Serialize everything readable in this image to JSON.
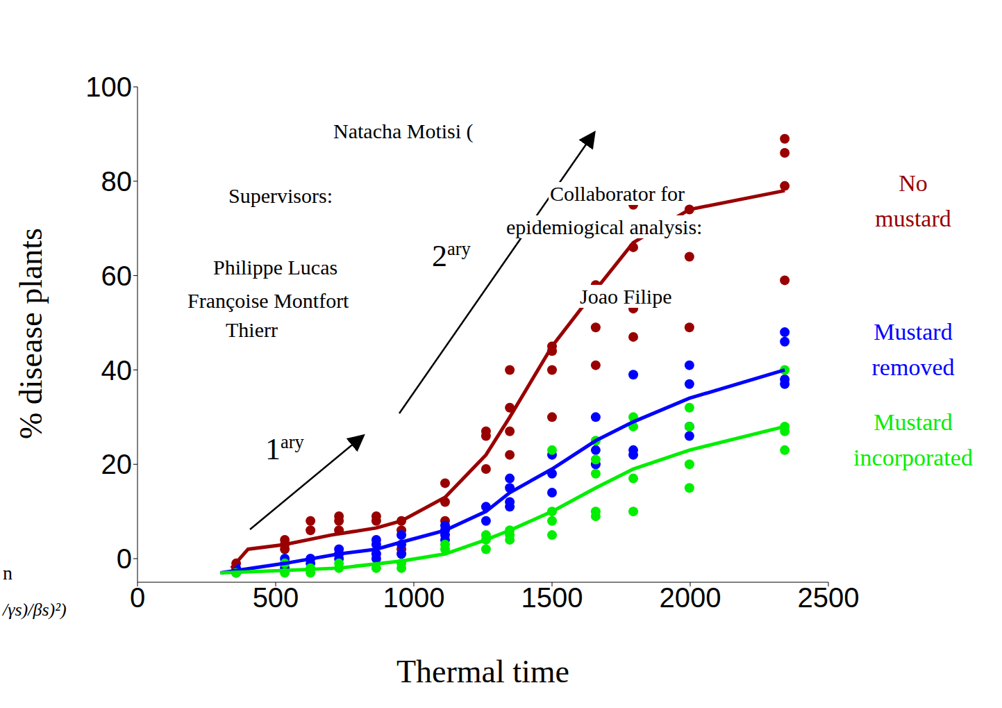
{
  "chart_data": {
    "type": "scatter",
    "x_label": "Thermal time",
    "y_label": "% disease plants",
    "xlim": [
      0,
      2500
    ],
    "xticks": [
      0,
      500,
      1000,
      1500,
      2000,
      2500
    ],
    "ylim": [
      -5,
      100
    ],
    "yticks": [
      0,
      20,
      40,
      60,
      80,
      100
    ],
    "legend": "right",
    "grid": false,
    "annotations": [
      "Natacha Motisi (",
      "Supervisors:",
      "Philippe Lucas",
      "Françoise Montfort",
      "Thierr",
      "Collaborator for",
      "epidemiogical analysis:",
      "Joao Filipe",
      "1ary",
      "2ary",
      "n",
      "/γs)/βs)²)"
    ],
    "series": [
      {
        "name": "No mustard",
        "color": "#990000",
        "marker": "circle",
        "x": [
          357,
          533,
          533,
          533,
          626,
          626,
          729,
          729,
          729,
          864,
          864,
          955,
          955,
          955,
          1113,
          1113,
          1113,
          1261,
          1261,
          1261,
          1347,
          1347,
          1347,
          1347,
          1500,
          1500,
          1500,
          1500,
          1658,
          1658,
          1658,
          1658,
          1794,
          1794,
          1794,
          1794,
          1997,
          1997,
          1997,
          2342,
          2342,
          2342,
          2342
        ],
        "values": [
          -1,
          4,
          3,
          2,
          8,
          6,
          9,
          8,
          6,
          9,
          8,
          8,
          6,
          2,
          16,
          12,
          8,
          27,
          26,
          19,
          40,
          32,
          27,
          22,
          45,
          44,
          40,
          30,
          58,
          57,
          49,
          41,
          75,
          66,
          53,
          47,
          74,
          64,
          49,
          89,
          86,
          79,
          59
        ],
        "fit": {
          "x": [
            340,
            400,
            533,
            700,
            864,
            955,
            1113,
            1261,
            1347,
            1500,
            1658,
            1794,
            1997,
            2342
          ],
          "values": [
            -2,
            2,
            3,
            5,
            6.5,
            8,
            13,
            22,
            30,
            45,
            57,
            67,
            74,
            78
          ]
        }
      },
      {
        "name": "Mustard removed",
        "color": "#0000ff",
        "marker": "circle",
        "x": [
          357,
          357,
          533,
          533,
          533,
          626,
          626,
          729,
          729,
          729,
          864,
          864,
          864,
          864,
          955,
          955,
          955,
          1113,
          1113,
          1113,
          1113,
          1261,
          1261,
          1347,
          1347,
          1347,
          1347,
          1500,
          1500,
          1500,
          1658,
          1658,
          1658,
          1794,
          1794,
          1794,
          1997,
          1997,
          1997,
          1997,
          2342,
          2342,
          2342,
          2342
        ],
        "values": [
          -3,
          -2,
          0,
          -1,
          -2,
          0,
          -1,
          2,
          1,
          0,
          4,
          3,
          1,
          0,
          5,
          3,
          1,
          7,
          6,
          5,
          4,
          11,
          8,
          17,
          15,
          12,
          11,
          22,
          18,
          14,
          30,
          23,
          20,
          39,
          23,
          22,
          41,
          37,
          28,
          26,
          48,
          46,
          38,
          37
        ],
        "fit": {
          "x": [
            300,
            533,
            729,
            864,
            955,
            1113,
            1261,
            1347,
            1500,
            1658,
            1794,
            1997,
            2342
          ],
          "values": [
            -3,
            -1,
            1,
            2,
            3.5,
            6,
            10,
            14,
            19,
            25,
            29,
            34,
            40
          ]
        }
      },
      {
        "name": "Mustard incorporated",
        "color": "#00ee00",
        "marker": "circle",
        "x": [
          357,
          533,
          533,
          626,
          626,
          729,
          729,
          864,
          955,
          955,
          1113,
          1113,
          1261,
          1261,
          1261,
          1347,
          1347,
          1347,
          1500,
          1500,
          1500,
          1500,
          1658,
          1658,
          1658,
          1658,
          1658,
          1794,
          1794,
          1794,
          1794,
          1997,
          1997,
          1997,
          1997,
          2342,
          2342,
          2342,
          2342
        ],
        "values": [
          -3,
          -1,
          -3,
          -2,
          -3,
          -1,
          -2,
          -2,
          -1,
          -2,
          3,
          2,
          5,
          4,
          2,
          6,
          5,
          4,
          23,
          10,
          8,
          5,
          25,
          21,
          18,
          10,
          9,
          30,
          28,
          17,
          10,
          32,
          28,
          20,
          15,
          40,
          28,
          27,
          23
        ],
        "fit": {
          "x": [
            300,
            533,
            729,
            955,
            1113,
            1261,
            1347,
            1500,
            1658,
            1794,
            1997,
            2342
          ],
          "values": [
            -3,
            -2.5,
            -2,
            -0.5,
            1,
            4,
            6,
            10,
            15,
            19,
            23,
            28
          ]
        }
      }
    ]
  }
}
